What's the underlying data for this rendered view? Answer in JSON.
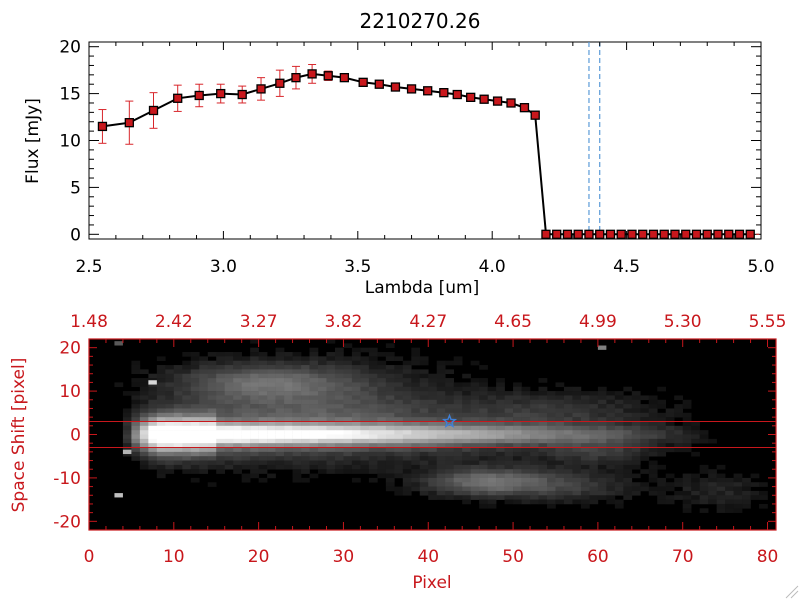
{
  "title": "2210270.26",
  "colors": {
    "line": "#000000",
    "marker": "#c8171c",
    "errorbar": "#d8262b",
    "window": "#5b9bd8",
    "frame2": "#c8171c",
    "trace": "#c8171c",
    "star": "#3f7fd6"
  },
  "chart_data": [
    {
      "type": "line",
      "title": "2210270.26",
      "xlabel": "Lambda [um]",
      "ylabel": "Flux [mJy]",
      "xlim": [
        2.5,
        5.0
      ],
      "ylim": [
        -0.5,
        20.5
      ],
      "xticks": [
        "2.5",
        "3.0",
        "3.5",
        "4.0",
        "4.5",
        "5.0"
      ],
      "yticks": [
        "0",
        "5",
        "10",
        "15",
        "20"
      ],
      "x": [
        2.55,
        2.65,
        2.74,
        2.83,
        2.91,
        2.99,
        3.07,
        3.14,
        3.21,
        3.27,
        3.33,
        3.39,
        3.45,
        3.52,
        3.58,
        3.64,
        3.7,
        3.76,
        3.82,
        3.87,
        3.92,
        3.97,
        4.02,
        4.07,
        4.12,
        4.16,
        4.2,
        4.24,
        4.28,
        4.32,
        4.36,
        4.4,
        4.44,
        4.48,
        4.52,
        4.56,
        4.6,
        4.64,
        4.68,
        4.72,
        4.76,
        4.8,
        4.84,
        4.88,
        4.92,
        4.96
      ],
      "y": [
        11.5,
        11.9,
        13.2,
        14.5,
        14.8,
        15.0,
        14.9,
        15.5,
        16.1,
        16.7,
        17.1,
        16.9,
        16.7,
        16.2,
        16.0,
        15.7,
        15.5,
        15.3,
        15.1,
        14.9,
        14.6,
        14.4,
        14.2,
        14.0,
        13.5,
        12.7,
        0,
        0,
        0,
        0,
        0,
        0,
        0,
        0,
        0,
        0,
        0,
        0,
        0,
        0,
        0,
        0,
        0,
        0,
        0,
        0
      ],
      "yerr": [
        1.8,
        2.3,
        1.9,
        1.4,
        1.2,
        1.0,
        0.9,
        1.2,
        1.4,
        1.2,
        1.0,
        0.5,
        0.2,
        0.2,
        0.2,
        0.2,
        0.2,
        0.2,
        0.2,
        0.2,
        0.2,
        0.2,
        0.2,
        0.2,
        0.2,
        0.2,
        0,
        0,
        0,
        0,
        0,
        0,
        0,
        0,
        0,
        0,
        0,
        0,
        0,
        0,
        0,
        0,
        0,
        0,
        0,
        0
      ],
      "vlines": [
        4.36,
        4.4
      ],
      "grid": false
    },
    {
      "type": "heatmap",
      "xlabel": "Pixel",
      "ylabel": "Space Shift [pixel]",
      "xlim": [
        0,
        81
      ],
      "ylim": [
        -22,
        22
      ],
      "xticks": [
        "0",
        "10",
        "20",
        "30",
        "40",
        "50",
        "60",
        "70",
        "80"
      ],
      "yticks": [
        "-20",
        "-10",
        "0",
        "10",
        "20"
      ],
      "top_axis_labels": [
        "1.48",
        "2.42",
        "3.27",
        "3.82",
        "4.27",
        "4.65",
        "4.99",
        "5.30",
        "5.55"
      ],
      "trace_lines": [
        3,
        -3
      ],
      "star": {
        "x": 42.5,
        "y": 3
      },
      "hot_pixels": [
        {
          "x": 7.5,
          "y": 12,
          "v": 0.85
        },
        {
          "x": 4.5,
          "y": -4,
          "v": 0.7
        },
        {
          "x": 3.5,
          "y": -14,
          "v": 0.75
        },
        {
          "x": 60.5,
          "y": 20,
          "v": 0.5
        },
        {
          "x": 3.5,
          "y": 21,
          "v": 0.35
        }
      ],
      "blobs": [
        {
          "x": 20,
          "y": 12,
          "amp": 0.28,
          "sx": 7,
          "sy": 3
        },
        {
          "x": 28,
          "y": 8,
          "amp": 0.18,
          "sx": 10,
          "sy": 6
        },
        {
          "x": 47,
          "y": -11,
          "amp": 0.38,
          "sx": 5,
          "sy": 2.2
        },
        {
          "x": 57,
          "y": -12,
          "amp": 0.16,
          "sx": 5,
          "sy": 2.5
        },
        {
          "x": 60,
          "y": -4,
          "amp": 0.14,
          "sx": 4,
          "sy": 2
        },
        {
          "x": 55,
          "y": 6,
          "amp": 0.12,
          "sx": 8,
          "sy": 3
        },
        {
          "x": 74,
          "y": -13,
          "amp": 0.1,
          "sx": 4,
          "sy": 3
        }
      ]
    }
  ]
}
